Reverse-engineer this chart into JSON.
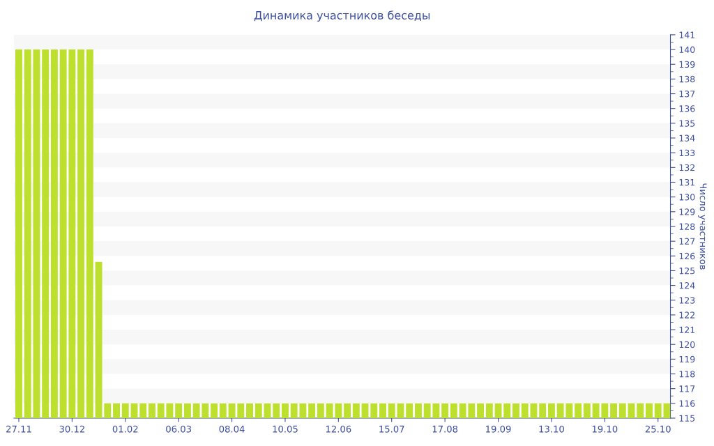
{
  "chart_data": {
    "type": "bar",
    "title": "Динамика участников беседы",
    "ylabel": "Число участников",
    "categories": [
      "27.11",
      null,
      null,
      null,
      null,
      null,
      "30.12",
      null,
      null,
      null,
      null,
      null,
      "01.02",
      null,
      null,
      null,
      null,
      null,
      "06.03",
      null,
      null,
      null,
      null,
      null,
      "08.04",
      null,
      null,
      null,
      null,
      null,
      "10.05",
      null,
      null,
      null,
      null,
      null,
      "12.06",
      null,
      null,
      null,
      null,
      null,
      "15.07",
      null,
      null,
      null,
      null,
      null,
      "17.08",
      null,
      null,
      null,
      null,
      null,
      "19.09",
      null,
      null,
      null,
      null,
      null,
      "13.10",
      null,
      null,
      null,
      null,
      null,
      "19.10",
      null,
      null,
      null,
      null,
      null,
      "25.10",
      null
    ],
    "values": [
      140,
      140,
      140,
      140,
      140,
      140,
      140,
      140,
      140,
      125.6,
      116,
      116,
      116,
      116,
      116,
      116,
      116,
      116,
      116,
      116,
      116,
      116,
      116,
      116,
      116,
      116,
      116,
      116,
      116,
      116,
      116,
      116,
      116,
      116,
      116,
      116,
      116,
      116,
      116,
      116,
      116,
      116,
      116,
      116,
      116,
      116,
      116,
      116,
      116,
      116,
      116,
      116,
      116,
      116,
      116,
      116,
      116,
      116,
      116,
      116,
      116,
      116,
      116,
      116,
      116,
      116,
      116,
      116,
      116,
      116,
      116,
      116,
      116,
      116
    ],
    "color": "#bde02f",
    "ylim": [
      115,
      141
    ],
    "yticks": [
      115,
      116,
      117,
      118,
      119,
      120,
      121,
      122,
      123,
      124,
      125,
      126,
      127,
      128,
      129,
      130,
      131,
      132,
      133,
      134,
      135,
      136,
      137,
      138,
      139,
      140,
      141
    ],
    "bands": [
      {
        "axis": "y",
        "from": 140,
        "to": 141,
        "color": "#f7f7f7"
      },
      {
        "axis": "y",
        "from": 138,
        "to": 139,
        "color": "#f7f7f7"
      },
      {
        "axis": "y",
        "from": 136,
        "to": 137,
        "color": "#f7f7f7"
      },
      {
        "axis": "y",
        "from": 134,
        "to": 135,
        "color": "#f7f7f7"
      },
      {
        "axis": "y",
        "from": 132,
        "to": 133,
        "color": "#f7f7f7"
      },
      {
        "axis": "y",
        "from": 130,
        "to": 131,
        "color": "#f7f7f7"
      },
      {
        "axis": "y",
        "from": 128,
        "to": 129,
        "color": "#f7f7f7"
      },
      {
        "axis": "y",
        "from": 126,
        "to": 127,
        "color": "#f7f7f7"
      },
      {
        "axis": "y",
        "from": 124,
        "to": 125,
        "color": "#f7f7f7"
      },
      {
        "axis": "y",
        "from": 122,
        "to": 123,
        "color": "#f7f7f7"
      },
      {
        "axis": "y",
        "from": 120,
        "to": 121,
        "color": "#f7f7f7"
      },
      {
        "axis": "y",
        "from": 118,
        "to": 119,
        "color": "#f7f7f7"
      },
      {
        "axis": "y",
        "from": 116,
        "to": 117,
        "color": "#f7f7f7"
      }
    ]
  }
}
